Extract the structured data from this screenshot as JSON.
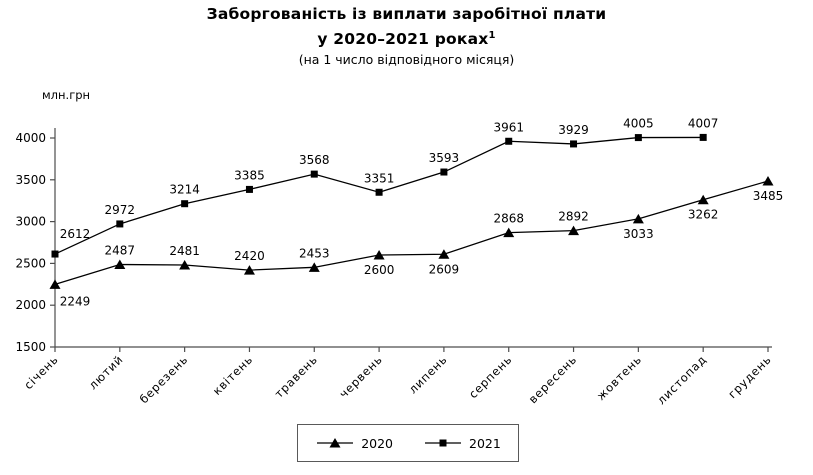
{
  "title": {
    "line1": "Заборгованість із виплати заробітної плати",
    "line2": "у 2020–2021 роках",
    "line2_superscript": "1",
    "subtitle": "(на 1 число відповідного місяця)"
  },
  "y_axis_unit": "млн.грн",
  "legend": {
    "items": [
      {
        "label": "2020",
        "marker": "triangle"
      },
      {
        "label": "2021",
        "marker": "square"
      }
    ]
  },
  "chart_data": {
    "type": "line",
    "title": "Заборгованість із виплати заробітної плати у 2020–2021 роках (на 1 число відповідного місяця)",
    "ylabel": "млн.грн",
    "xlabel": "",
    "categories": [
      "січень",
      "лютий",
      "березень",
      "квітень",
      "травень",
      "червень",
      "липень",
      "серпень",
      "вересень",
      "жовтень",
      "листопад",
      "грудень"
    ],
    "series": [
      {
        "name": "2020",
        "marker": "triangle",
        "values": [
          2249,
          2487,
          2481,
          2420,
          2453,
          2600,
          2609,
          2868,
          2892,
          3033,
          3262,
          3485
        ],
        "label_positions": [
          "below",
          "above",
          "above",
          "above",
          "above",
          "below",
          "below",
          "above",
          "above",
          "below",
          "below",
          "below"
        ]
      },
      {
        "name": "2021",
        "marker": "square",
        "values": [
          2612,
          2972,
          3214,
          3385,
          3568,
          3351,
          3593,
          3961,
          3929,
          4005,
          4007
        ],
        "label_positions": [
          "above",
          "above",
          "above",
          "above",
          "above",
          "above",
          "above",
          "above",
          "above",
          "above",
          "above"
        ]
      }
    ],
    "ylim": [
      1500,
      4000
    ],
    "y_ticks": [
      1500,
      2000,
      2500,
      3000,
      3500,
      4000
    ],
    "grid": false,
    "legend_position": "bottom-center",
    "series_color": "#000000",
    "axis_color": "#4d4d4d"
  }
}
